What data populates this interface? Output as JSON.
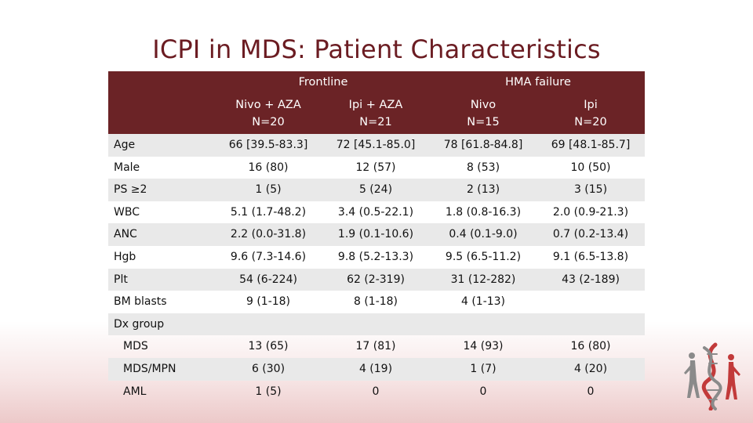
{
  "title": "ICPI in MDS: Patient Characteristics",
  "table": {
    "groups": [
      {
        "label": "Frontline"
      },
      {
        "label": "HMA failure"
      }
    ],
    "columns": [
      {
        "line1": "Nivo + AZA",
        "line2": "N=20"
      },
      {
        "line1": "Ipi + AZA",
        "line2": "N=21"
      },
      {
        "line1": "Nivo",
        "line2": "N=15"
      },
      {
        "line1": "Ipi",
        "line2": "N=20"
      }
    ],
    "rows": [
      {
        "label": "Age",
        "indent": false,
        "cells": [
          "66 [39.5-83.3]",
          "72 [45.1-85.0]",
          "78 [61.8-84.8]",
          "69 [48.1-85.7]"
        ]
      },
      {
        "label": "Male",
        "indent": false,
        "cells": [
          "16 (80)",
          "12 (57)",
          "8 (53)",
          "10 (50)"
        ]
      },
      {
        "label": "PS ≥2",
        "indent": false,
        "cells": [
          "1 (5)",
          "5 (24)",
          "2 (13)",
          "3 (15)"
        ]
      },
      {
        "label": "WBC",
        "indent": false,
        "cells": [
          "5.1 (1.7-48.2)",
          "3.4 (0.5-22.1)",
          "1.8 (0.8-16.3)",
          "2.0 (0.9-21.3)"
        ]
      },
      {
        "label": "ANC",
        "indent": false,
        "cells": [
          "2.2 (0.0-31.8)",
          "1.9 (0.1-10.6)",
          "0.4 (0.1-9.0)",
          "0.7 (0.2-13.4)"
        ]
      },
      {
        "label": "Hgb",
        "indent": false,
        "cells": [
          "9.6 (7.3-14.6)",
          "9.8 (5.2-13.3)",
          "9.5 (6.5-11.2)",
          "9.1 (6.5-13.8)"
        ]
      },
      {
        "label": "Plt",
        "indent": false,
        "cells": [
          "54 (6-224)",
          "62 (2-319)",
          "31 (12-282)",
          "43 (2-189)"
        ]
      },
      {
        "label": "BM blasts",
        "indent": false,
        "cells": [
          "9 (1-18)",
          "8 (1-18)",
          "4 (1-13)",
          ""
        ]
      },
      {
        "label": "Dx group",
        "indent": false,
        "cells": [
          "",
          "",
          "",
          ""
        ]
      },
      {
        "label": "MDS",
        "indent": true,
        "cells": [
          "13 (65)",
          "17 (81)",
          "14 (93)",
          "16 (80)"
        ]
      },
      {
        "label": "MDS/MPN",
        "indent": true,
        "cells": [
          "6 (30)",
          "4 (19)",
          "1 (7)",
          "4 (20)"
        ]
      },
      {
        "label": "AML",
        "indent": true,
        "cells": [
          "1 (5)",
          "0",
          "0",
          "0"
        ]
      }
    ]
  },
  "colors": {
    "title": "#6b1c22",
    "header_bg": "#6b2326",
    "row_shade": "#e9e9e9",
    "logo_red": "#c23a3a",
    "logo_gray": "#8a8a8a"
  },
  "logo": {
    "icon": "dna-figure-logo"
  }
}
